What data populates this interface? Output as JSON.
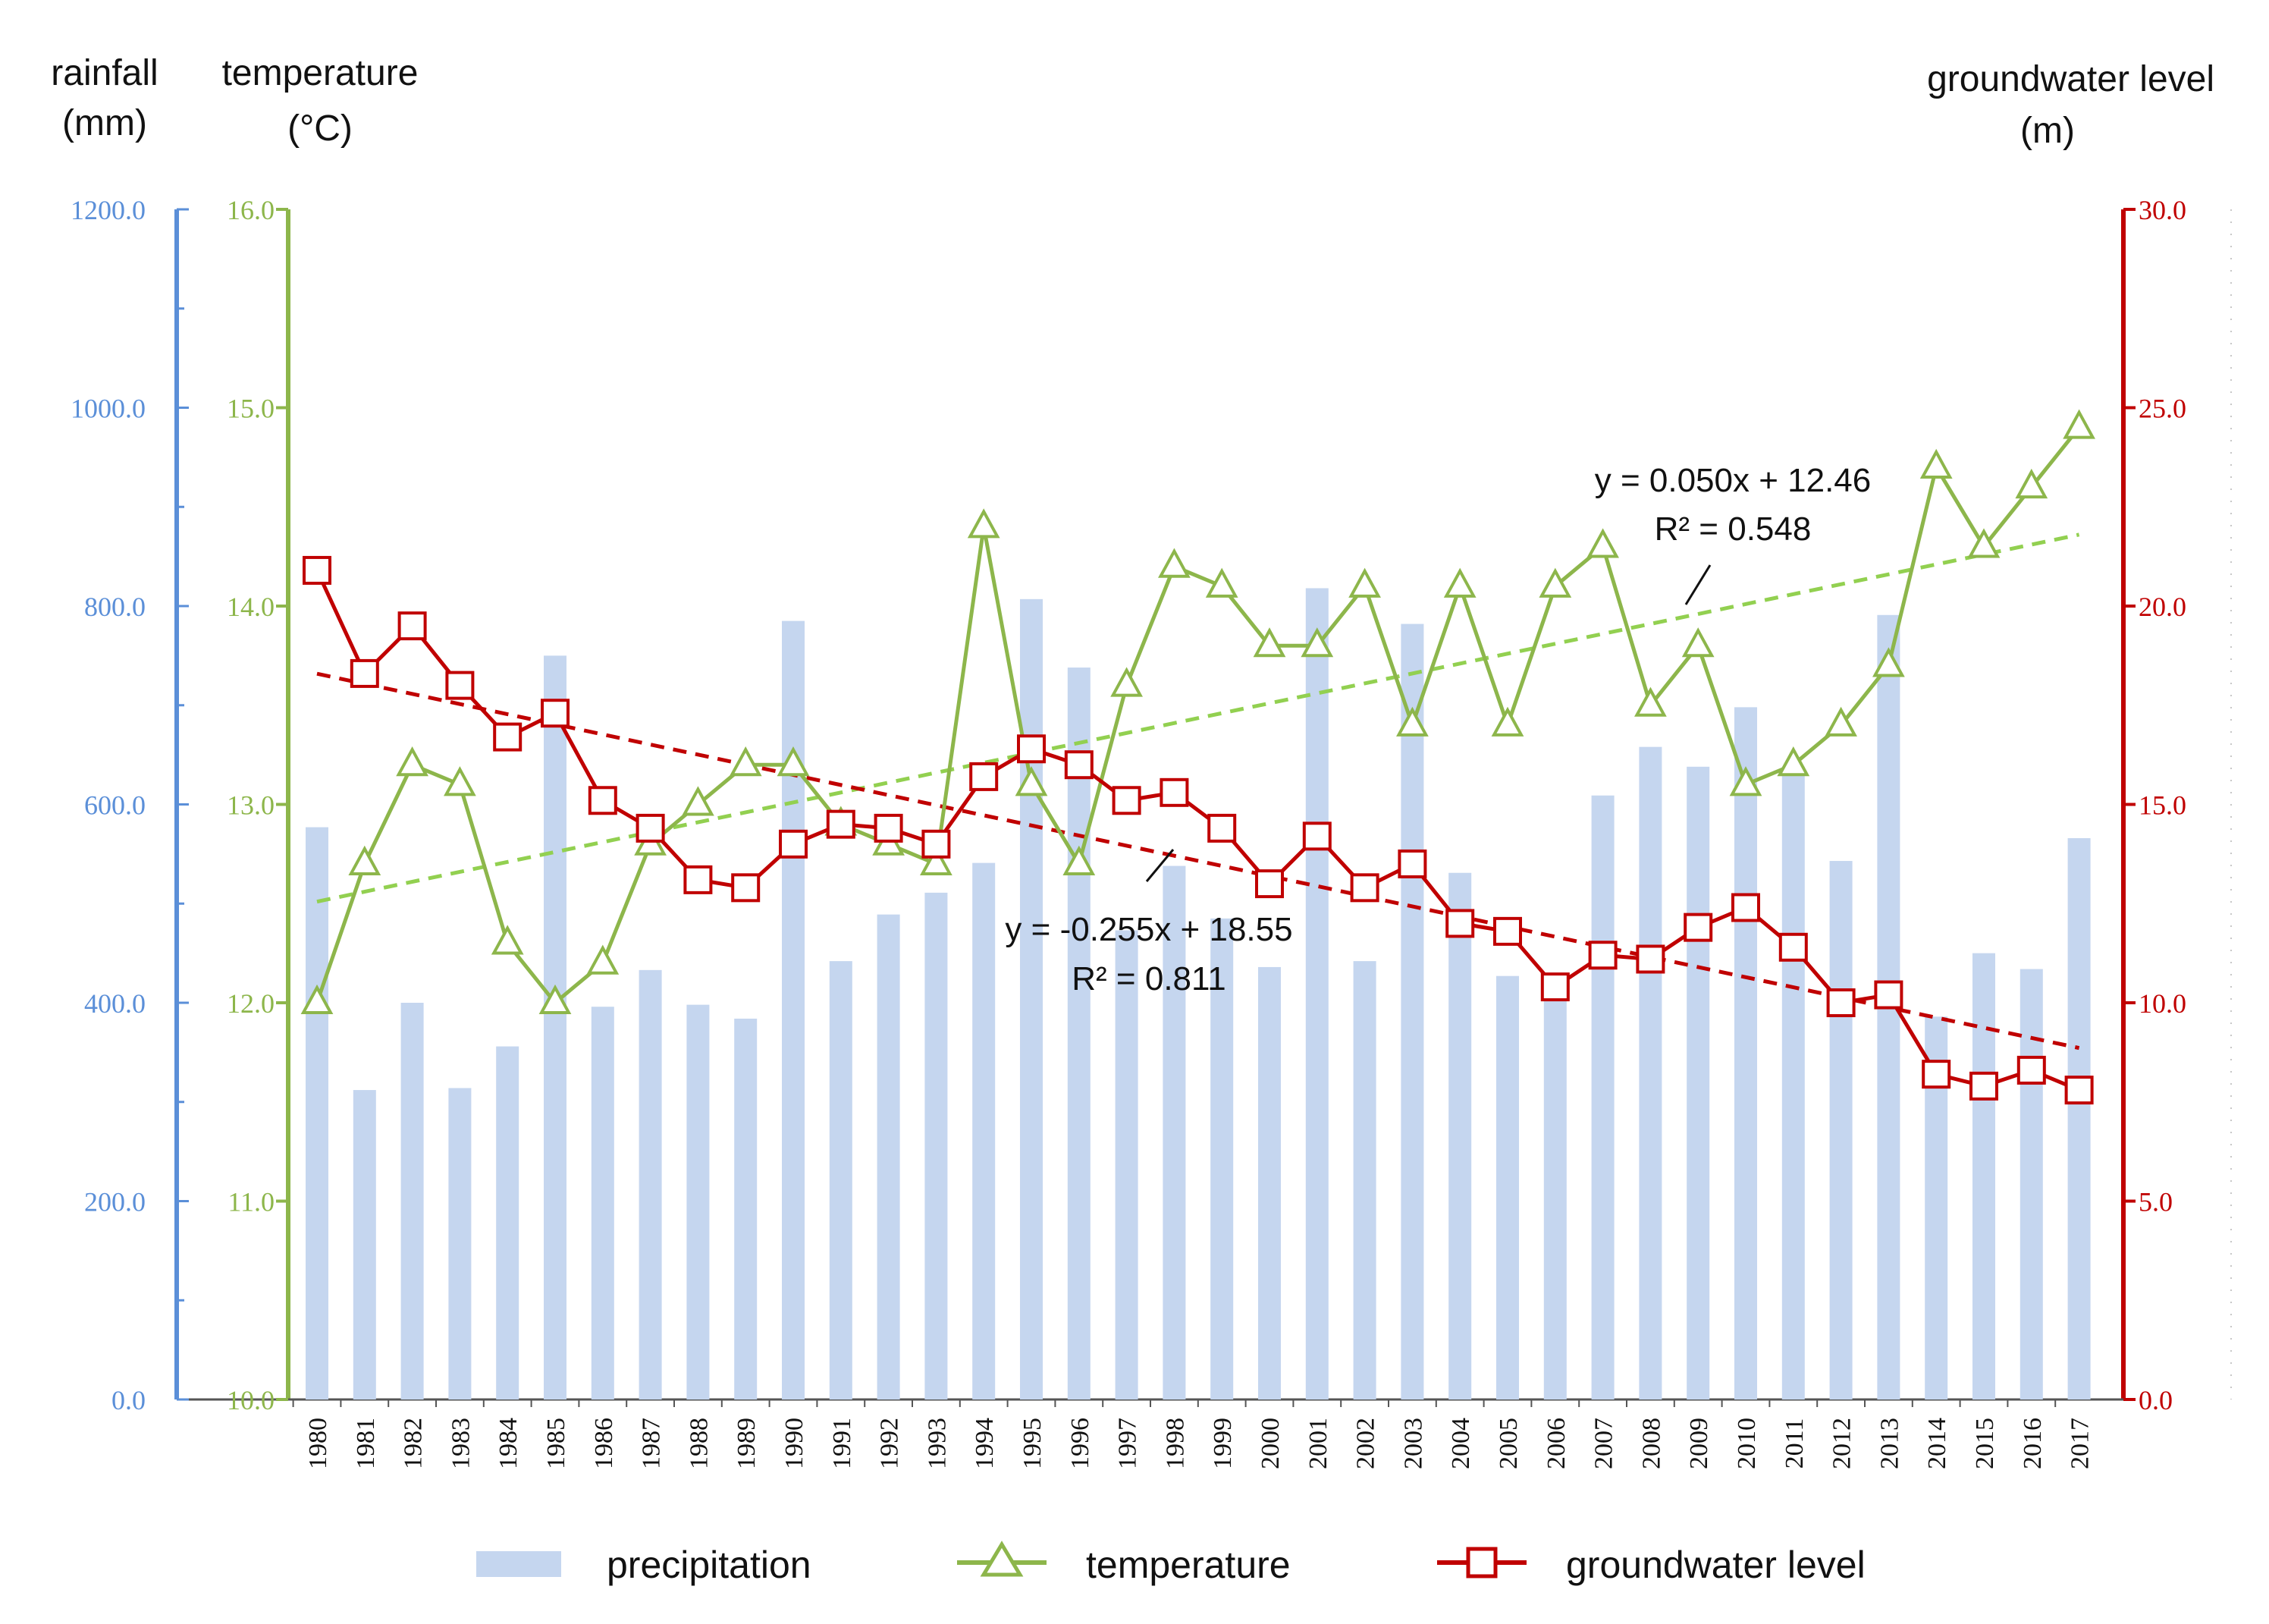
{
  "chart_data": {
    "type": "bar+line",
    "title": "",
    "x": [
      "1980",
      "1981",
      "1982",
      "1983",
      "1984",
      "1985",
      "1986",
      "1987",
      "1988",
      "1989",
      "1990",
      "1991",
      "1992",
      "1993",
      "1994",
      "1995",
      "1996",
      "1997",
      "1998",
      "1999",
      "2000",
      "2001",
      "2002",
      "2003",
      "2004",
      "2005",
      "2006",
      "2007",
      "2008",
      "2009",
      "2010",
      "2011",
      "2012",
      "2013",
      "2014",
      "2015",
      "2016",
      "2017"
    ],
    "axes": {
      "rainfall": {
        "label_line1": "rainfall",
        "label_line2": "(mm)",
        "min": 0,
        "max": 1200,
        "ticks": [
          "0.0",
          "200.0",
          "400.0",
          "600.0",
          "800.0",
          "1000.0",
          "1200.0"
        ],
        "color": "#5b8fd8"
      },
      "temperature": {
        "label_line1": "temperature",
        "label_line2": "(°C)",
        "min": 10,
        "max": 16,
        "ticks": [
          "10.0",
          "11.0",
          "12.0",
          "13.0",
          "14.0",
          "15.0",
          "16.0"
        ],
        "color": "#8db64b"
      },
      "groundwater": {
        "label_line1": "groundwater level",
        "label_line2": "(m)",
        "min": 0,
        "max": 30,
        "ticks": [
          "0.0",
          "5.0",
          "10.0",
          "15.0",
          "20.0",
          "25.0",
          "30.0"
        ],
        "color": "#c00000"
      }
    },
    "series": [
      {
        "name": "precipitation",
        "type": "bar",
        "axis": "rainfall",
        "color": "#c5d6ef",
        "values": [
          577,
          312,
          400,
          314,
          356,
          750,
          396,
          433,
          398,
          384,
          785,
          442,
          489,
          511,
          541,
          807,
          738,
          473,
          538,
          485,
          436,
          818,
          442,
          782,
          531,
          427,
          426,
          609,
          658,
          638,
          698,
          638,
          543,
          791,
          386,
          450,
          434,
          566
        ]
      },
      {
        "name": "temperature",
        "type": "line",
        "axis": "temperature",
        "color": "#8db64b",
        "marker": "triangle",
        "values": [
          12.0,
          12.7,
          13.2,
          13.1,
          12.3,
          12.0,
          12.2,
          12.8,
          13.0,
          13.2,
          13.2,
          12.9,
          12.8,
          12.7,
          14.4,
          13.1,
          12.7,
          13.6,
          14.2,
          14.1,
          13.8,
          13.8,
          14.1,
          13.4,
          14.1,
          13.4,
          14.1,
          14.3,
          13.5,
          13.8,
          13.1,
          13.2,
          13.4,
          13.7,
          14.7,
          14.3,
          14.6,
          14.9
        ]
      },
      {
        "name": "groundwater level",
        "type": "line",
        "axis": "groundwater",
        "color": "#c00000",
        "marker": "square",
        "values": [
          20.9,
          18.3,
          19.5,
          18.0,
          16.7,
          17.3,
          15.1,
          14.4,
          13.1,
          12.9,
          14.0,
          14.5,
          14.4,
          14.0,
          15.7,
          16.4,
          16.0,
          15.1,
          15.3,
          14.4,
          13.0,
          14.2,
          12.9,
          13.5,
          12.0,
          11.8,
          10.4,
          11.2,
          11.1,
          11.9,
          12.4,
          11.4,
          10.0,
          10.2,
          8.2,
          7.9,
          8.3,
          7.8
        ]
      }
    ],
    "trendlines": [
      {
        "series": "temperature",
        "slope": 0.05,
        "intercept": 12.46,
        "equation": "y = 0.050x + 12.46",
        "r2": "R² = 0.548",
        "color": "#92d050"
      },
      {
        "series": "groundwater level",
        "slope": -0.255,
        "intercept": 18.55,
        "equation": "y = -0.255x + 18.55",
        "r2": "R² = 0.811",
        "color": "#c00000"
      }
    ],
    "legend": {
      "position": "bottom",
      "items": [
        {
          "label": "precipitation",
          "marker": "bar",
          "color": "#c5d6ef"
        },
        {
          "label": "temperature",
          "marker": "triangle",
          "color": "#8db64b"
        },
        {
          "label": "groundwater level",
          "marker": "square",
          "color": "#c00000"
        }
      ]
    }
  }
}
